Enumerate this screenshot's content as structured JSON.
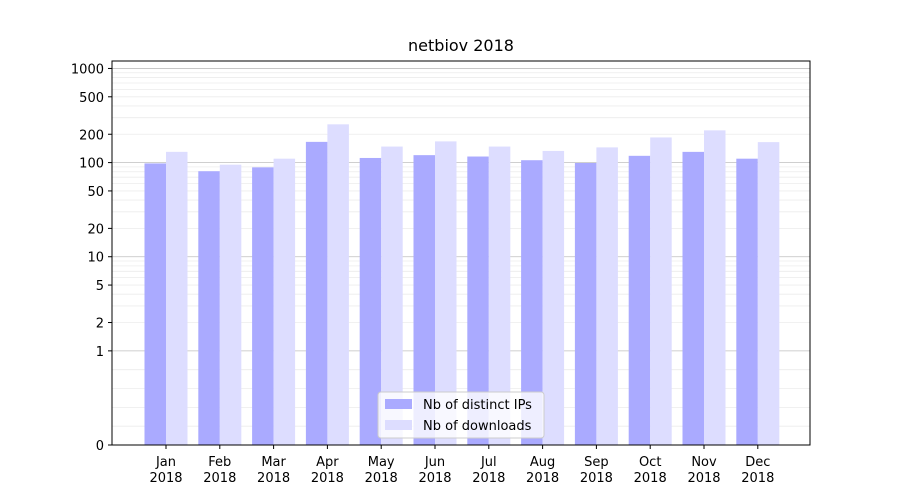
{
  "chart_data": {
    "type": "bar",
    "title": "netbiov 2018",
    "xlabel": "",
    "ylabel": "",
    "y_scale": "symlog",
    "ylim": [
      0,
      1200
    ],
    "y_ticks": [
      {
        "value": 0,
        "label": "0"
      },
      {
        "value": 1,
        "label": "1"
      },
      {
        "value": 2,
        "label": "2"
      },
      {
        "value": 5,
        "label": "5"
      },
      {
        "value": 10,
        "label": "10"
      },
      {
        "value": 20,
        "label": "20"
      },
      {
        "value": 50,
        "label": "50"
      },
      {
        "value": 100,
        "label": "100"
      },
      {
        "value": 200,
        "label": "200"
      },
      {
        "value": 500,
        "label": "500"
      },
      {
        "value": 1000,
        "label": "1000"
      }
    ],
    "categories": [
      [
        "Jan",
        "2018"
      ],
      [
        "Feb",
        "2018"
      ],
      [
        "Mar",
        "2018"
      ],
      [
        "Apr",
        "2018"
      ],
      [
        "May",
        "2018"
      ],
      [
        "Jun",
        "2018"
      ],
      [
        "Jul",
        "2018"
      ],
      [
        "Aug",
        "2018"
      ],
      [
        "Sep",
        "2018"
      ],
      [
        "Oct",
        "2018"
      ],
      [
        "Nov",
        "2018"
      ],
      [
        "Dec",
        "2018"
      ]
    ],
    "series": [
      {
        "name": "Nb of distinct IPs",
        "color": "#aaaaff",
        "values": [
          98,
          81,
          89,
          166,
          112,
          120,
          116,
          106,
          99,
          118,
          130,
          110
        ]
      },
      {
        "name": "Nb of downloads",
        "color": "#ddddff",
        "values": [
          130,
          95,
          110,
          255,
          148,
          168,
          148,
          133,
          145,
          185,
          220,
          165
        ]
      }
    ],
    "grid": true,
    "legend_position": "lower center"
  }
}
